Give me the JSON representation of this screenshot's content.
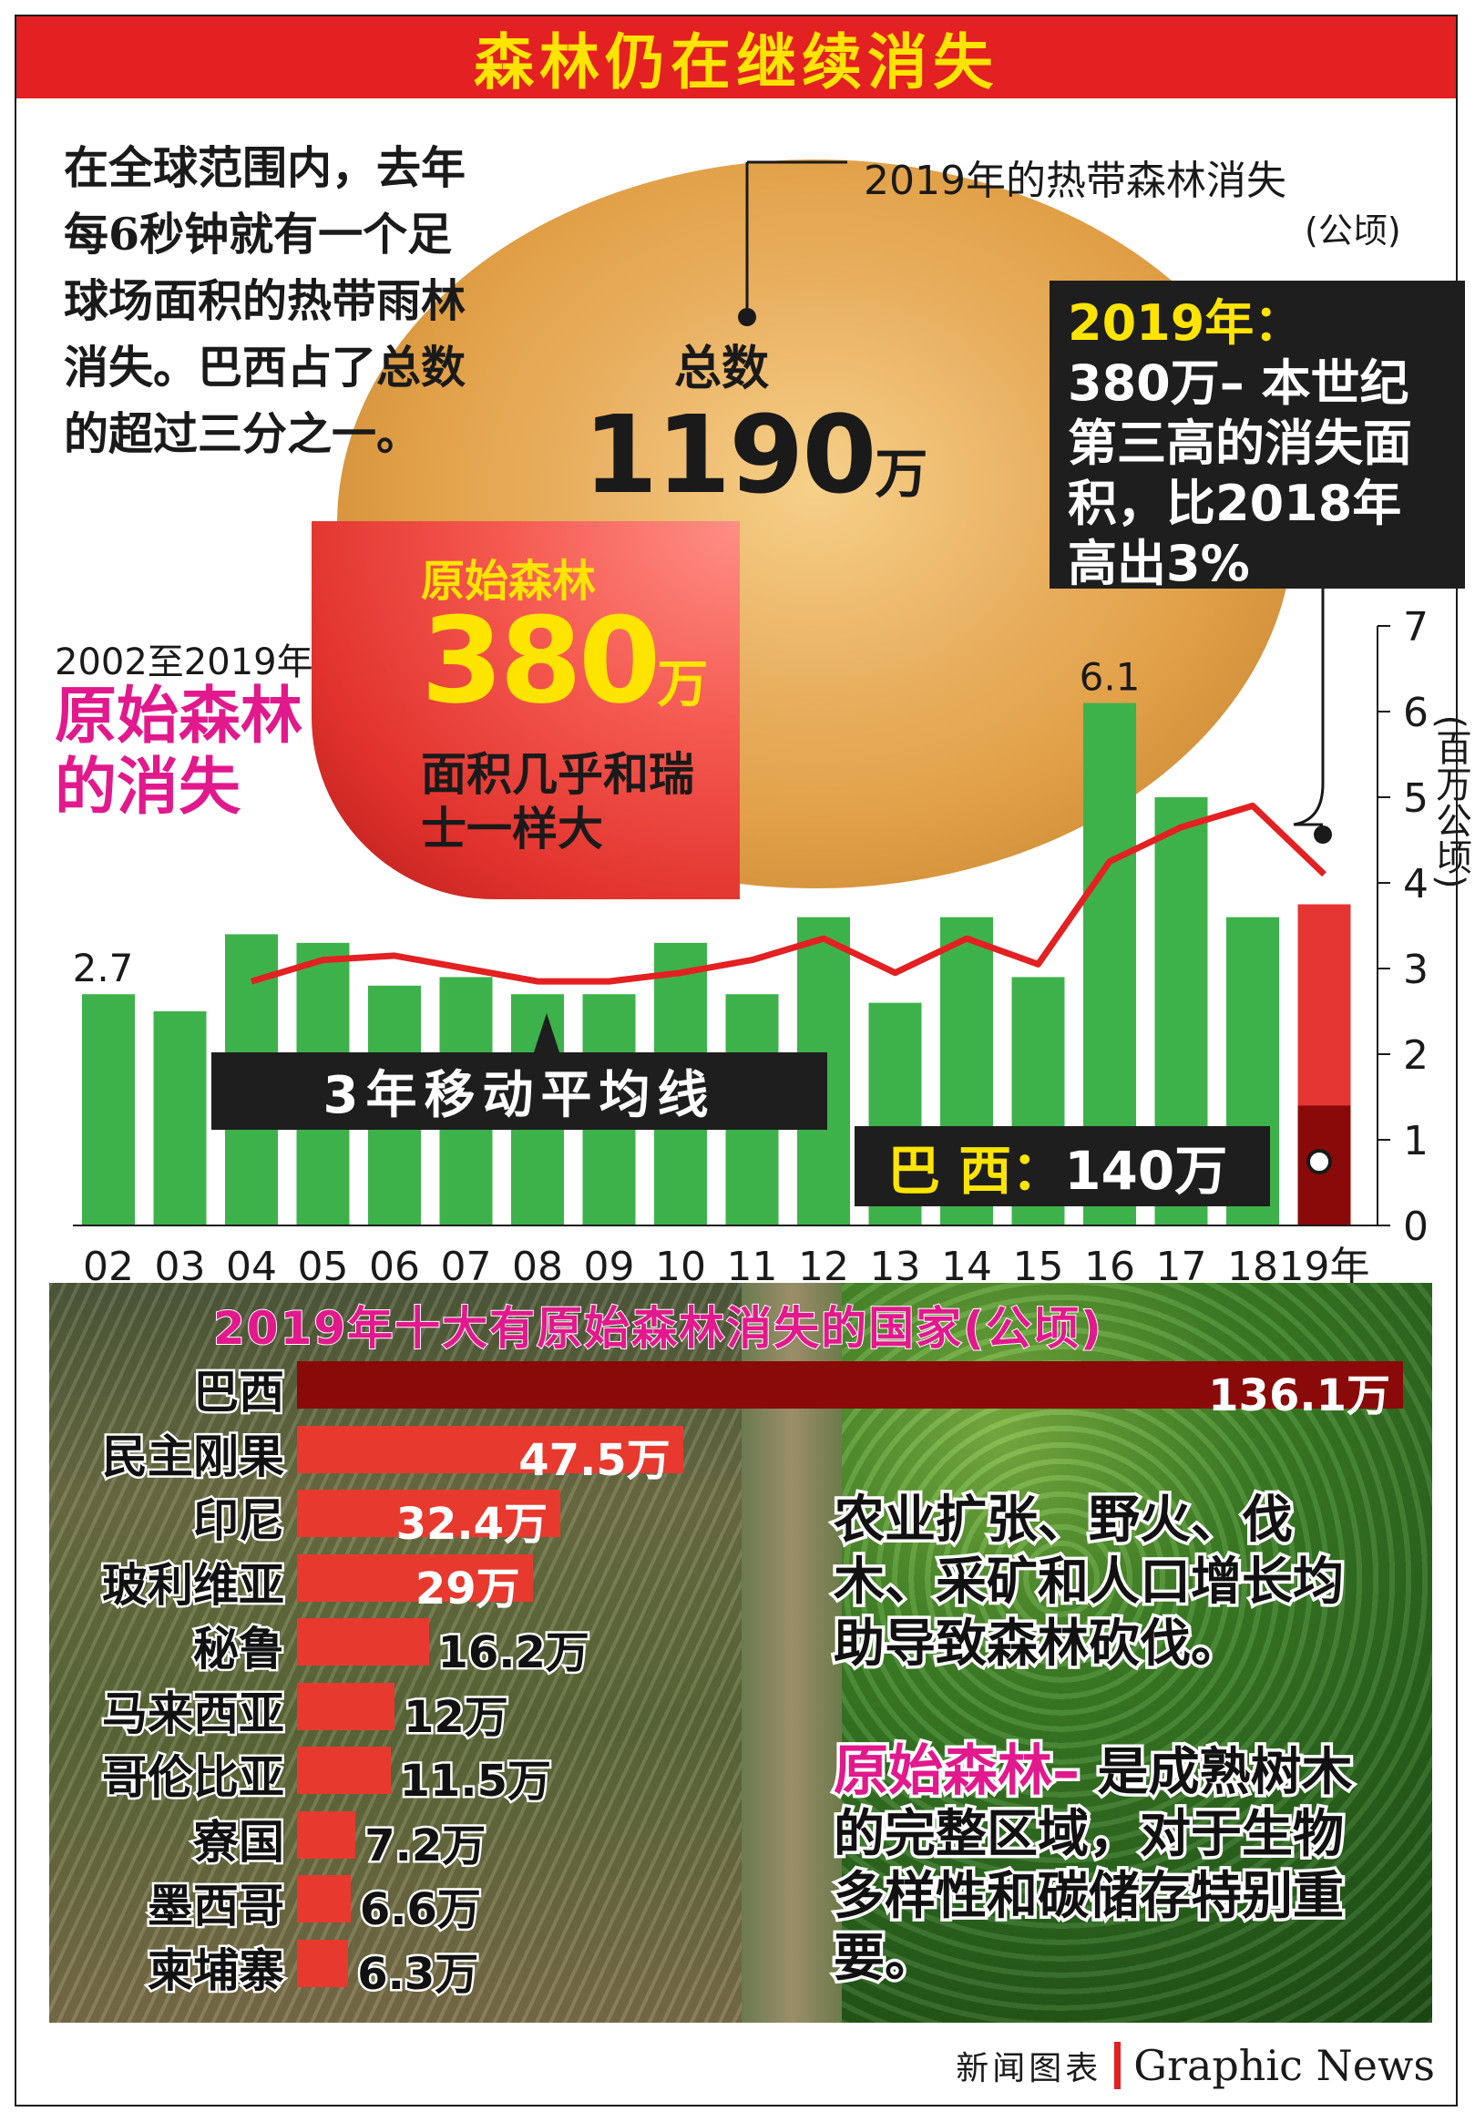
{
  "title": "森林仍在继续消失",
  "intro_text": "在全球范围内，去年每6秒钟就有一个足球场面积的热带雨林消失。巴西占了总数的超过三分之一。",
  "tropical_loss": {
    "label": "2019年的热带森林消失",
    "unit": "(公顷)",
    "total_label": "总数",
    "total_value": "1190",
    "total_unit": "万",
    "primary_label": "原始森林",
    "primary_value": "380",
    "primary_unit": "万",
    "primary_note": "面积几乎和瑞士一样大"
  },
  "box_2019": {
    "heading": "2019年：",
    "body": "380万– 本世纪第三高的消失面积，比2018年高出3%"
  },
  "section": {
    "subtitle": "2002至2019年",
    "title": "原始森林的消失"
  },
  "moving_avg_label": "3年移动平均线",
  "brazil_callout": {
    "name": "巴 西：",
    "value": "140万"
  },
  "colors": {
    "title_bg": "#e32022",
    "title_text": "#ffe400",
    "bar_green": "#3db24b",
    "line_red": "#e32022",
    "bar_2019_red": "#e53532",
    "bar_2019_brazil": "#8a0a0a",
    "magenta": "#e2198c",
    "dark_box": "#1e1e1e",
    "country_bar": "#e8392f",
    "country_bar_top": "#8a0a0a"
  },
  "chart_data": [
    {
      "type": "bar",
      "categories": [
        "02",
        "03",
        "04",
        "05",
        "06",
        "07",
        "08",
        "09",
        "10",
        "11",
        "12",
        "13",
        "14",
        "15",
        "16",
        "17",
        "18",
        "19年"
      ],
      "series": [
        {
          "values": [
            2.7,
            2.5,
            3.4,
            3.3,
            2.8,
            2.9,
            2.7,
            2.7,
            3.3,
            2.7,
            3.6,
            2.6,
            3.6,
            2.9,
            6.1,
            5.0,
            3.6,
            3.75
          ]
        }
      ],
      "line_series": {
        "name": "3年移动平均线",
        "x_start_index": 2,
        "values": [
          2.85,
          3.1,
          3.15,
          3.0,
          2.85,
          2.85,
          2.95,
          3.1,
          3.35,
          2.95,
          3.35,
          3.05,
          4.25,
          4.65,
          4.9,
          4.1
        ]
      },
      "brazil_2019": 1.4,
      "annotations": [
        "2.7",
        "6.1"
      ],
      "ylim": [
        0,
        7
      ],
      "yticks": [
        "0",
        "1",
        "2",
        "3",
        "4",
        "5",
        "6",
        "7"
      ],
      "ylabel": "(百万公顷)",
      "grid": false
    },
    {
      "type": "bar",
      "orientation": "horizontal",
      "title": "2019年十大有原始森林消失的国家(公顷)",
      "categories": [
        "巴西",
        "民主刚果",
        "印尼",
        "玻利维亚",
        "秘鲁",
        "马来西亚",
        "哥伦比亚",
        "寮国",
        "墨西哥",
        "柬埔寨"
      ],
      "values": [
        136.1,
        47.5,
        32.4,
        29,
        16.2,
        12,
        11.5,
        7.2,
        6.6,
        6.3
      ],
      "labels": [
        "136.1万",
        "47.5万",
        "32.4万",
        "29万",
        "16.2万",
        "12万",
        "11.5万",
        "7.2万",
        "6.6万",
        "6.3万"
      ]
    }
  ],
  "causes_text": "农业扩张、野火、伐木、采矿和人口增长均助导致森林砍伐。",
  "definition": {
    "term": "原始森林–",
    "text": "是成熟树木的完整区域，对于生物多样性和碳储存特别重要。"
  },
  "credit": {
    "cn": "新闻图表",
    "en": "Graphic News"
  }
}
